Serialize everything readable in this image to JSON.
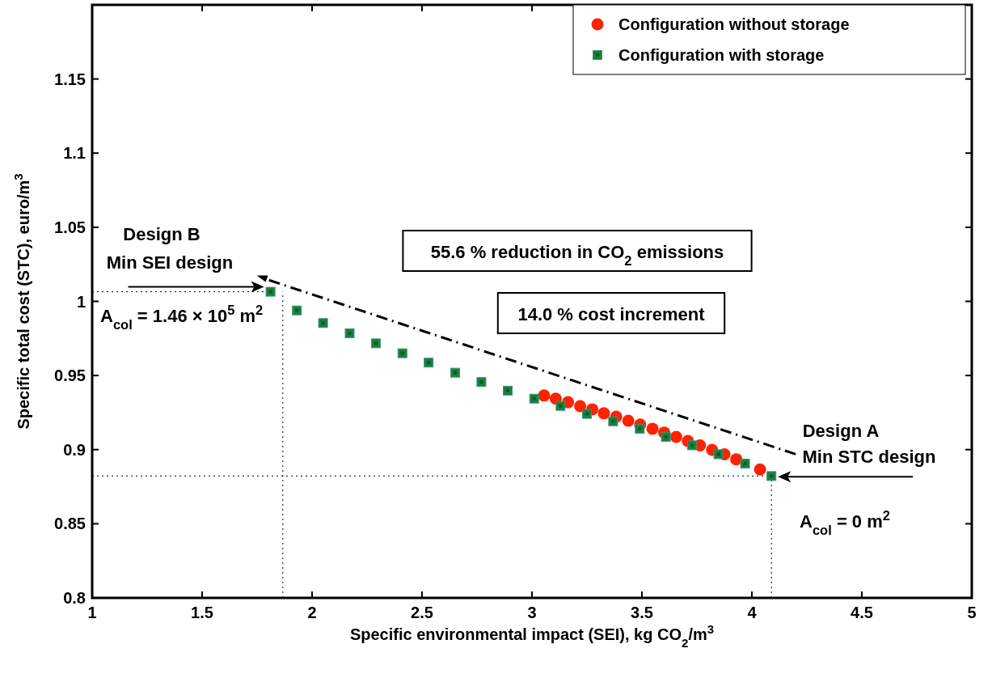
{
  "chart_data": {
    "type": "scatter",
    "xlabel": "Specific environmental impact (SEI), kg CO$_{2}$/m$^{3}$",
    "ylabel": "Specific total cost (STC), euro/m$^{3}$",
    "xlim": [
      1,
      5
    ],
    "xticks": [
      1,
      1.5,
      2,
      2.5,
      3,
      3.5,
      4,
      4.5,
      5
    ],
    "ylim": [
      0.8,
      1.2
    ],
    "yticks": [
      0.8,
      0.85,
      0.9,
      0.95,
      1,
      1.05,
      1.1,
      1.15
    ],
    "grid": false,
    "legend": "top right",
    "series": [
      {
        "name": "Configuration without storage",
        "color": "#ff2200",
        "marker": "circle",
        "x": [
          3.055,
          3.108,
          3.164,
          3.219,
          3.274,
          3.327,
          3.383,
          3.438,
          3.492,
          3.548,
          3.601,
          3.656,
          3.709,
          3.764,
          3.819,
          3.875,
          3.929,
          4.037
        ],
        "values": [
          0.9365,
          0.9344,
          0.932,
          0.9293,
          0.9272,
          0.9245,
          0.9222,
          0.9195,
          0.9169,
          0.9141,
          0.9115,
          0.9086,
          0.9059,
          0.9029,
          0.8999,
          0.8969,
          0.8935,
          0.8866
        ]
      },
      {
        "name": "Configuration with storage",
        "color": "#1f7a4a",
        "marker": "square",
        "x": [
          1.811,
          1.931,
          2.05,
          2.171,
          2.29,
          2.411,
          2.53,
          2.651,
          2.77,
          2.89,
          3.01,
          3.13,
          3.25,
          3.369,
          3.49,
          3.609,
          3.728,
          3.848,
          3.969,
          4.089
        ],
        "values": [
          1.0065,
          0.9939,
          0.9854,
          0.9785,
          0.9717,
          0.965,
          0.9587,
          0.9519,
          0.9456,
          0.9398,
          0.9344,
          0.9295,
          0.9241,
          0.9191,
          0.9141,
          0.9086,
          0.9029,
          0.8969,
          0.8906,
          0.8822
        ]
      }
    ],
    "ref_lines": [
      {
        "axis": "y",
        "value": 0.8822,
        "line_style": "dotted"
      },
      {
        "axis": "y",
        "value": 1.0065,
        "line_style": "dotted"
      },
      {
        "axis": "x",
        "value": 1.867,
        "line_style": "dotted"
      },
      {
        "axis": "x",
        "value": 4.089,
        "line_style": "dotted"
      }
    ],
    "annotations": [
      "Design B",
      "Min SEI design",
      "A$_{col}$ = 1.46 × 10$^{5}$ m$^{2}$",
      "55.6 % reduction in CO$_{2}$ emissions",
      "14.0 % cost increment",
      "Design A",
      "Min STC design",
      "A$_{col}$ = 0 m$^{2}$"
    ]
  }
}
